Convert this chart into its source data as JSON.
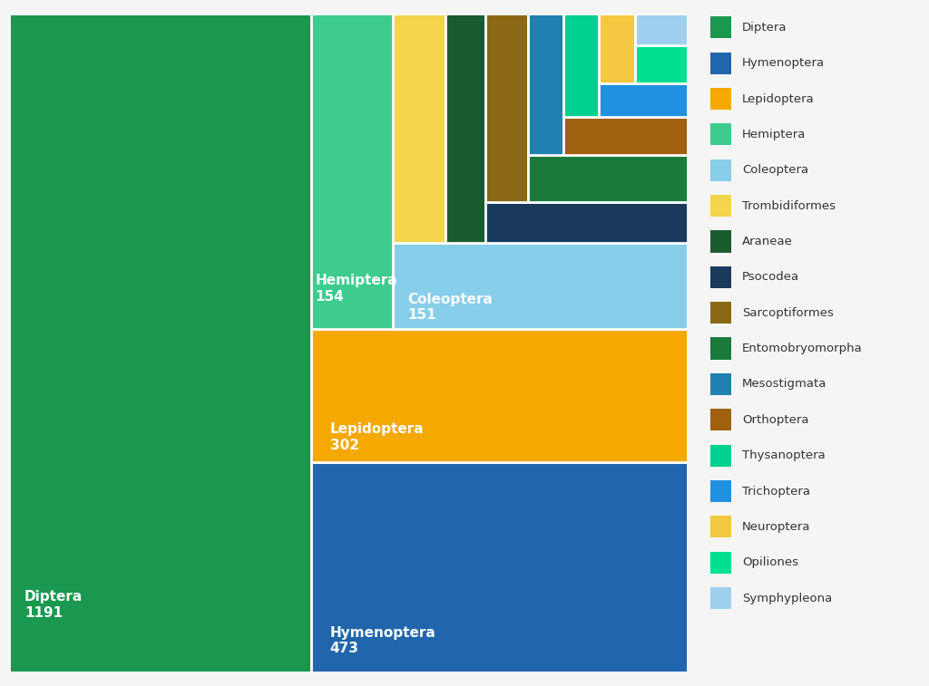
{
  "labels": [
    "Diptera",
    "Hymenoptera",
    "Lepidoptera",
    "Hemiptera",
    "Coleoptera",
    "Trombidiformes",
    "Araneae",
    "Psocodea",
    "Sarcoptiformes",
    "Entomobryomorpha",
    "Mesostigmata",
    "Orthoptera",
    "Thysanoptera",
    "Trichoptera",
    "Neuroptera",
    "Opiliones",
    "Symphypleona"
  ],
  "values": [
    1191,
    473,
    302,
    154,
    151,
    72,
    55,
    50,
    48,
    45,
    30,
    28,
    22,
    18,
    15,
    12,
    10
  ],
  "colors": [
    "#1a9850",
    "#2166ac",
    "#f4a800",
    "#3dcc8e",
    "#87ceeb",
    "#f4d44a",
    "#1a5c30",
    "#1a3a5c",
    "#8b6914",
    "#1a7a3c",
    "#2080b0",
    "#a06010",
    "#00d090",
    "#2090e0",
    "#f4c840",
    "#00e090",
    "#a0d0f0"
  ],
  "show_labels": [
    "Diptera",
    "Hymenoptera",
    "Lepidoptera",
    "Hemiptera",
    "Coleoptera"
  ],
  "show_values": [
    1191,
    473,
    302,
    154,
    151
  ],
  "bg_color": "#f5f5f5",
  "legend_colors": [
    "#1a9850",
    "#2166ac",
    "#f4a800",
    "#3dcc8e",
    "#87ceeb",
    "#f4d44a",
    "#1a5c30",
    "#1a3a5c",
    "#8b6914",
    "#1a7a3c",
    "#2080b0",
    "#a06010",
    "#00d090",
    "#2090e0",
    "#f4c840",
    "#00e090",
    "#a0d0f0"
  ]
}
